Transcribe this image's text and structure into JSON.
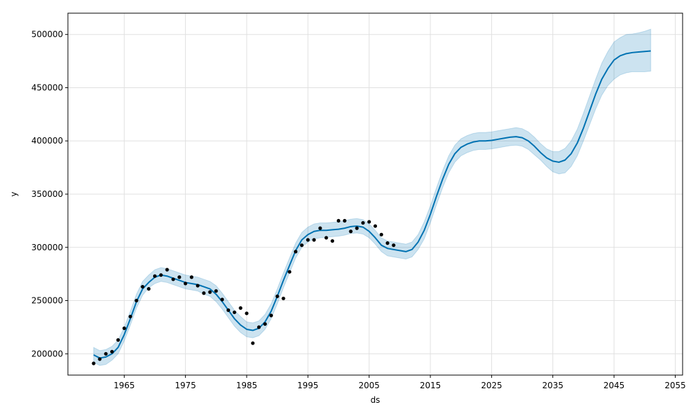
{
  "chart_data": {
    "type": "line",
    "title": "",
    "xlabel": "ds",
    "ylabel": "y",
    "xlim": [
      1955.8,
      2056.2
    ],
    "ylim": [
      180000,
      520000
    ],
    "xticks": [
      1965,
      1975,
      1985,
      1995,
      2005,
      2015,
      2025,
      2035,
      2045,
      2055
    ],
    "xtick_labels": [
      "1965",
      "1975",
      "1985",
      "1995",
      "2005",
      "2015",
      "2025",
      "2035",
      "2045",
      "2055"
    ],
    "yticks": [
      200000,
      250000,
      300000,
      350000,
      400000,
      450000,
      500000
    ],
    "ytick_labels": [
      "200000",
      "250000",
      "300000",
      "350000",
      "400000",
      "450000",
      "500000"
    ],
    "grid": true,
    "colors": {
      "forecast": "#0072b2",
      "interval": "#0072b2",
      "observed": "#000000",
      "grid": "#e0e0e0"
    },
    "observed": {
      "x": [
        1960,
        1961,
        1962,
        1963,
        1964,
        1965,
        1966,
        1967,
        1968,
        1969,
        1970,
        1971,
        1972,
        1973,
        1974,
        1975,
        1976,
        1977,
        1978,
        1979,
        1980,
        1981,
        1982,
        1983,
        1984,
        1985,
        1986,
        1987,
        1988,
        1989,
        1990,
        1991,
        1992,
        1993,
        1994,
        1995,
        1996,
        1997,
        1998,
        1999,
        2000,
        2001,
        2002,
        2003,
        2004,
        2005,
        2006,
        2007,
        2008,
        2009
      ],
      "y": [
        191000,
        195000,
        200000,
        202000,
        213000,
        224000,
        235000,
        250000,
        263000,
        261000,
        273000,
        274000,
        279000,
        270000,
        272000,
        266000,
        272000,
        264000,
        257000,
        258000,
        259000,
        251000,
        241000,
        239000,
        243000,
        238000,
        210000,
        225000,
        228000,
        236000,
        254000,
        252000,
        277000,
        296000,
        302000,
        307000,
        307000,
        318000,
        309000,
        306000,
        325000,
        325000,
        315000,
        318000,
        323000,
        324000,
        320000,
        312000,
        304000,
        302000
      ]
    },
    "series": [
      {
        "x": [
          1960,
          1961,
          1962,
          1963,
          1964,
          1965,
          1966,
          1967,
          1968,
          1969,
          1970,
          1971,
          1972,
          1973,
          1974,
          1975,
          1976,
          1977,
          1978,
          1979,
          1980,
          1981,
          1982,
          1983,
          1984,
          1985,
          1986,
          1987,
          1988,
          1989,
          1990,
          1991,
          1992,
          1993,
          1994,
          1995,
          1996,
          1997,
          1998,
          1999,
          2000,
          2001,
          2002,
          2003,
          2004,
          2005,
          2006,
          2007,
          2008,
          2009,
          2010,
          2011,
          2012,
          2013,
          2014,
          2015,
          2016,
          2017,
          2018,
          2019,
          2020,
          2021,
          2022,
          2023,
          2024,
          2025,
          2026,
          2027,
          2028,
          2029,
          2030,
          2031,
          2032,
          2033,
          2034,
          2035,
          2036,
          2037,
          2038,
          2039,
          2040,
          2041,
          2042,
          2043,
          2044,
          2045,
          2046,
          2047,
          2048,
          2049,
          2050,
          2051
        ],
        "y": [
          199000,
          196000,
          197000,
          200000,
          206000,
          218000,
          233000,
          249000,
          261000,
          267000,
          272000,
          274000,
          273000,
          271000,
          269000,
          267000,
          266000,
          265000,
          263000,
          261000,
          256000,
          249000,
          241000,
          233000,
          227000,
          223000,
          222000,
          224000,
          230000,
          240000,
          254000,
          269000,
          283000,
          297000,
          307000,
          312000,
          315000,
          316000,
          316000,
          316500,
          317000,
          318000,
          319500,
          320000,
          319000,
          315000,
          309000,
          302000,
          299000,
          298000,
          297000,
          296000,
          298000,
          305000,
          316000,
          331000,
          348000,
          364000,
          378000,
          388000,
          394000,
          397000,
          399000,
          400000,
          400000,
          400500,
          401500,
          402500,
          403500,
          404000,
          403000,
          400000,
          395000,
          389000,
          384000,
          381000,
          380000,
          382000,
          388000,
          398000,
          412000,
          428000,
          444000,
          458000,
          468000,
          476000,
          480000,
          482000,
          483000,
          483500,
          484000,
          484500
        ]
      }
    ],
    "interval": {
      "x": [
        1960,
        1961,
        1962,
        1963,
        1964,
        1965,
        1966,
        1967,
        1968,
        1969,
        1970,
        1971,
        1972,
        1973,
        1974,
        1975,
        1976,
        1977,
        1978,
        1979,
        1980,
        1981,
        1982,
        1983,
        1984,
        1985,
        1986,
        1987,
        1988,
        1989,
        1990,
        1991,
        1992,
        1993,
        1994,
        1995,
        1996,
        1997,
        1998,
        1999,
        2000,
        2001,
        2002,
        2003,
        2004,
        2005,
        2006,
        2007,
        2008,
        2009,
        2010,
        2011,
        2012,
        2013,
        2014,
        2015,
        2016,
        2017,
        2018,
        2019,
        2020,
        2021,
        2022,
        2023,
        2024,
        2025,
        2026,
        2027,
        2028,
        2029,
        2030,
        2031,
        2032,
        2033,
        2034,
        2035,
        2036,
        2037,
        2038,
        2039,
        2040,
        2041,
        2042,
        2043,
        2044,
        2045,
        2046,
        2047,
        2048,
        2049,
        2050,
        2051
      ],
      "lower": [
        192000,
        189000,
        190000,
        194000,
        200000,
        212000,
        227000,
        243000,
        255000,
        262000,
        266000,
        268000,
        267000,
        265000,
        263000,
        261000,
        260000,
        259000,
        256000,
        254000,
        249000,
        242000,
        234000,
        226000,
        220000,
        216000,
        215000,
        217000,
        223000,
        233000,
        247000,
        262000,
        276000,
        290000,
        300000,
        305000,
        308000,
        309000,
        309500,
        310000,
        310500,
        311500,
        313000,
        313500,
        312500,
        309000,
        303000,
        296000,
        292000,
        291000,
        290000,
        289000,
        291000,
        298000,
        308000,
        323000,
        340000,
        356000,
        370000,
        380000,
        386000,
        389000,
        391000,
        392000,
        392000,
        392500,
        393500,
        394500,
        395500,
        396000,
        395000,
        392000,
        387000,
        382000,
        376000,
        371000,
        369000,
        370000,
        376000,
        386000,
        400000,
        415000,
        430000,
        443000,
        452000,
        458000,
        462000,
        464000,
        465000,
        465000,
        465000,
        465500
      ],
      "upper": [
        206000,
        203000,
        204000,
        207000,
        213000,
        225000,
        240000,
        256000,
        268000,
        274000,
        279000,
        281000,
        280000,
        278000,
        276000,
        274000,
        273000,
        272000,
        270000,
        268000,
        264000,
        257000,
        249000,
        241000,
        235000,
        230000,
        229000,
        231000,
        237000,
        247000,
        261000,
        276000,
        290000,
        304000,
        314000,
        319000,
        322000,
        323000,
        323000,
        323500,
        324000,
        325000,
        326500,
        327000,
        326000,
        322000,
        316000,
        309000,
        306000,
        305000,
        304000,
        303000,
        305000,
        312000,
        324000,
        339000,
        356000,
        372000,
        386000,
        396000,
        402000,
        405000,
        407000,
        408000,
        408000,
        408500,
        409500,
        410500,
        411500,
        412500,
        411500,
        408500,
        403500,
        397500,
        392500,
        390000,
        390000,
        393000,
        400000,
        411000,
        426000,
        442000,
        458000,
        473000,
        484000,
        493000,
        497000,
        500000,
        500500,
        501500,
        503000,
        505000
      ]
    }
  }
}
